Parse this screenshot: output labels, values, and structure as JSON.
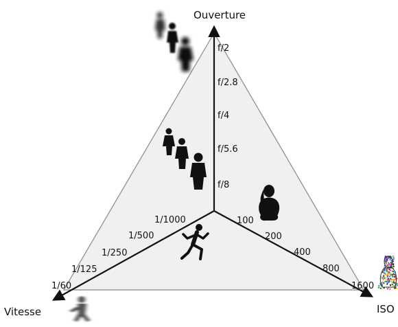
{
  "diagram": {
    "axes": {
      "aperture": {
        "title": "Ouverture",
        "ticks": [
          "f/2",
          "f/2.8",
          "f/4",
          "f/5.6",
          "f/8"
        ]
      },
      "shutter": {
        "title": "Vitesse",
        "ticks": [
          "1/60",
          "1/125",
          "1/250",
          "1/500",
          "1/1000"
        ]
      },
      "iso": {
        "title": "ISO",
        "ticks": [
          "100",
          "200",
          "400",
          "800",
          "1600"
        ]
      }
    },
    "illustrations": {
      "aperture_wide": "walking-people-blurred-background-icon",
      "aperture_narrow": "walking-people-in-focus-icon",
      "shutter": "running-person-icon",
      "shutter_slow": "running-person-motion-blur-icon",
      "iso_low": "person-clean-silhouette-icon",
      "iso_high": "person-noisy-silhouette-icon"
    },
    "colors": {
      "triangle_fill": "#f0f0f0",
      "triangle_stroke": "#888888",
      "axis": "#111111",
      "noise_colors": [
        "#e33",
        "#3a3",
        "#33d",
        "#d3d",
        "#dd3",
        "#3dd",
        "#222"
      ]
    }
  }
}
